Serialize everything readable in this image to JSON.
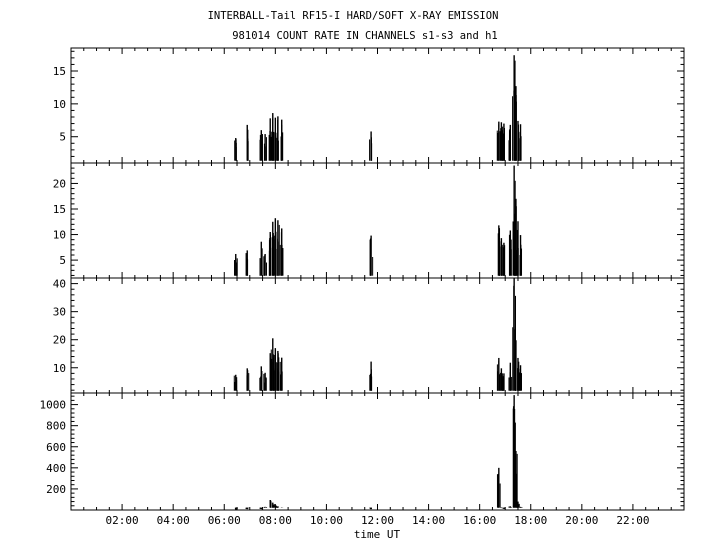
{
  "header": {
    "title": "INTERBALL-Tail RF15-I HARD/SOFT X-RAY EMISSION",
    "subtitle": "981014  COUNT RATE IN CHANNELS s1-s3 and h1"
  },
  "chart_data": [
    {
      "type": "line",
      "panel": "s1",
      "xlim": [
        0,
        24
      ],
      "ylim": [
        1,
        18.5
      ],
      "yticks": [
        5,
        10,
        15
      ],
      "yticklabels": [
        "5",
        "10",
        "15"
      ],
      "bursts": [
        [
          6.45,
          4.8
        ],
        [
          6.9,
          6.8
        ],
        [
          7.45,
          6.0
        ],
        [
          7.6,
          5.4
        ],
        [
          7.8,
          7.8
        ],
        [
          7.9,
          8.6
        ],
        [
          8.0,
          7.9
        ],
        [
          8.1,
          8.1
        ],
        [
          8.25,
          7.6
        ],
        [
          11.75,
          5.8
        ],
        [
          16.75,
          7.3
        ],
        [
          16.85,
          7.2
        ],
        [
          16.95,
          7.0
        ],
        [
          17.2,
          6.8
        ],
        [
          17.35,
          17.4
        ],
        [
          17.42,
          12.7
        ],
        [
          17.5,
          7.4
        ],
        [
          17.6,
          6.9
        ]
      ]
    },
    {
      "type": "line",
      "panel": "s2",
      "xlim": [
        0,
        24
      ],
      "ylim": [
        1.5,
        24
      ],
      "yticks": [
        5,
        10,
        15,
        20
      ],
      "yticklabels": [
        "5",
        "10",
        "15",
        "20"
      ],
      "bursts": [
        [
          6.45,
          6.2
        ],
        [
          6.9,
          6.9
        ],
        [
          7.45,
          8.6
        ],
        [
          7.6,
          6.2
        ],
        [
          7.8,
          10.5
        ],
        [
          7.9,
          12.5
        ],
        [
          8.0,
          13.2
        ],
        [
          8.1,
          12.8
        ],
        [
          8.25,
          11.2
        ],
        [
          11.75,
          9.8
        ],
        [
          16.75,
          11.8
        ],
        [
          16.85,
          9.3
        ],
        [
          16.95,
          8.4
        ],
        [
          17.2,
          10.8
        ],
        [
          17.35,
          23.5
        ],
        [
          17.42,
          17.0
        ],
        [
          17.5,
          12.6
        ],
        [
          17.6,
          9.9
        ]
      ]
    },
    {
      "type": "line",
      "panel": "s3",
      "xlim": [
        0,
        24
      ],
      "ylim": [
        1,
        42
      ],
      "yticks": [
        10,
        20,
        30,
        40
      ],
      "yticklabels": [
        "10",
        "20",
        "30",
        "40"
      ],
      "bursts": [
        [
          6.45,
          7.5
        ],
        [
          6.9,
          9.8
        ],
        [
          7.45,
          10.5
        ],
        [
          7.6,
          8.2
        ],
        [
          7.8,
          15.2
        ],
        [
          7.9,
          20.5
        ],
        [
          8.0,
          17.0
        ],
        [
          8.1,
          16.0
        ],
        [
          8.25,
          13.6
        ],
        [
          11.75,
          12.2
        ],
        [
          16.75,
          13.5
        ],
        [
          16.85,
          9.8
        ],
        [
          16.95,
          8.0
        ],
        [
          17.2,
          11.8
        ],
        [
          17.35,
          42.0
        ],
        [
          17.42,
          19.8
        ],
        [
          17.5,
          13.5
        ],
        [
          17.6,
          10.9
        ]
      ]
    },
    {
      "type": "line",
      "panel": "h1",
      "xlim": [
        0,
        24
      ],
      "ylim": [
        0,
        1110
      ],
      "yticks": [
        200,
        400,
        600,
        800,
        1000
      ],
      "yticklabels": [
        "200",
        "400",
        "600",
        "800",
        "1000"
      ],
      "bursts": [
        [
          6.45,
          5
        ],
        [
          6.9,
          8
        ],
        [
          7.45,
          8
        ],
        [
          7.6,
          30
        ],
        [
          7.8,
          95
        ],
        [
          7.9,
          70
        ],
        [
          8.0,
          45
        ],
        [
          8.1,
          35
        ],
        [
          8.25,
          20
        ],
        [
          11.75,
          8
        ],
        [
          16.75,
          400
        ],
        [
          16.85,
          18
        ],
        [
          16.95,
          10
        ],
        [
          17.2,
          35
        ],
        [
          17.35,
          1090
        ],
        [
          17.42,
          560
        ],
        [
          17.5,
          80
        ],
        [
          17.6,
          30
        ]
      ]
    }
  ],
  "x_axis": {
    "label": "time UT",
    "ticks": [
      2,
      4,
      6,
      8,
      10,
      12,
      14,
      16,
      18,
      20,
      22
    ],
    "ticklabels": [
      "02:00",
      "04:00",
      "06:00",
      "08:00",
      "10:00",
      "12:00",
      "14:00",
      "16:00",
      "18:00",
      "20:00",
      "22:00"
    ]
  }
}
